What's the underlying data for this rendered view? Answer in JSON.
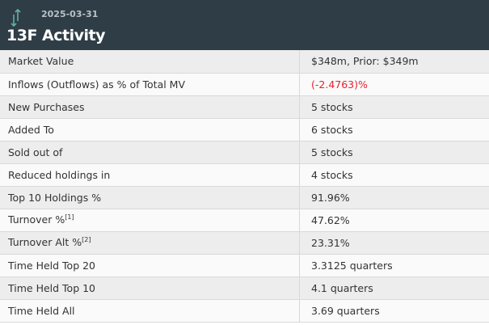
{
  "header": {
    "date": "2025-03-31",
    "title": "13F Activity",
    "icon": "arrows-up-down-icon",
    "icon_color": "#5fb3a3"
  },
  "rows": [
    {
      "label": "Market Value",
      "value": "$348m, Prior: $349m"
    },
    {
      "label": "Inflows (Outflows) as % of Total MV",
      "value": "(-2.4763)%",
      "negative": true
    },
    {
      "label": "New Purchases",
      "value": "5 stocks"
    },
    {
      "label": "Added To",
      "value": "6 stocks"
    },
    {
      "label": "Sold out of",
      "value": "5 stocks"
    },
    {
      "label": "Reduced holdings in",
      "value": "4 stocks"
    },
    {
      "label": "Top 10 Holdings %",
      "value": "91.96%"
    },
    {
      "label": "Turnover %",
      "sup": "[1]",
      "value": "47.62%"
    },
    {
      "label": "Turnover Alt %",
      "sup": "[2]",
      "value": "23.31%"
    },
    {
      "label": "Time Held Top 20",
      "value": "3.3125 quarters"
    },
    {
      "label": "Time Held Top 10",
      "value": "4.1 quarters"
    },
    {
      "label": "Time Held All",
      "value": "3.69 quarters"
    }
  ]
}
